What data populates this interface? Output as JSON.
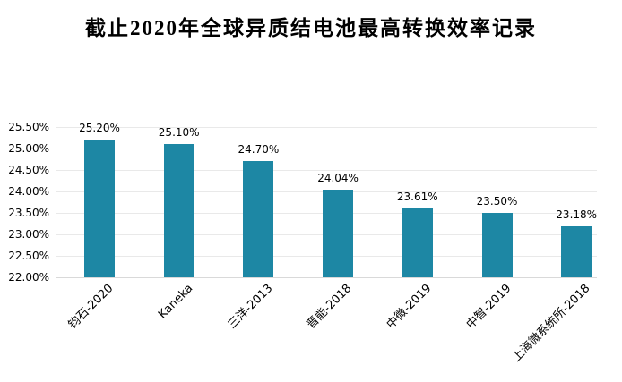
{
  "chart_data": {
    "type": "bar",
    "title": "截止2020年全球异质结电池最高转换效率记录",
    "categories": [
      "钧石-2020",
      "Kaneka",
      "三洋-2013",
      "晋能-2018",
      "中微-2019",
      "中智-2019",
      "上海微系统所-2018"
    ],
    "values": [
      25.2,
      25.1,
      24.7,
      24.04,
      23.61,
      23.5,
      23.18
    ],
    "value_labels": [
      "25.20%",
      "25.10%",
      "24.70%",
      "24.04%",
      "23.61%",
      "23.50%",
      "23.18%"
    ],
    "xlabel": "",
    "ylabel": "",
    "ylim": [
      22.0,
      25.5
    ],
    "yticks": [
      {
        "value": 25.5,
        "label": "25.50%"
      },
      {
        "value": 25.0,
        "label": "25.00%"
      },
      {
        "value": 24.5,
        "label": "24.50%"
      },
      {
        "value": 24.0,
        "label": "24.00%"
      },
      {
        "value": 23.5,
        "label": "23.50%"
      },
      {
        "value": 23.0,
        "label": "23.00%"
      },
      {
        "value": 22.5,
        "label": "22.50%"
      },
      {
        "value": 22.0,
        "label": "22.00%"
      }
    ],
    "grid": true,
    "legend": false,
    "bar_color": "#1d87a4"
  },
  "colors": {
    "bar": "#1d87a4",
    "gridline": "#e9e9e9",
    "baseline": "#d9d9d9",
    "text": "#000000",
    "background": "#ffffff"
  }
}
